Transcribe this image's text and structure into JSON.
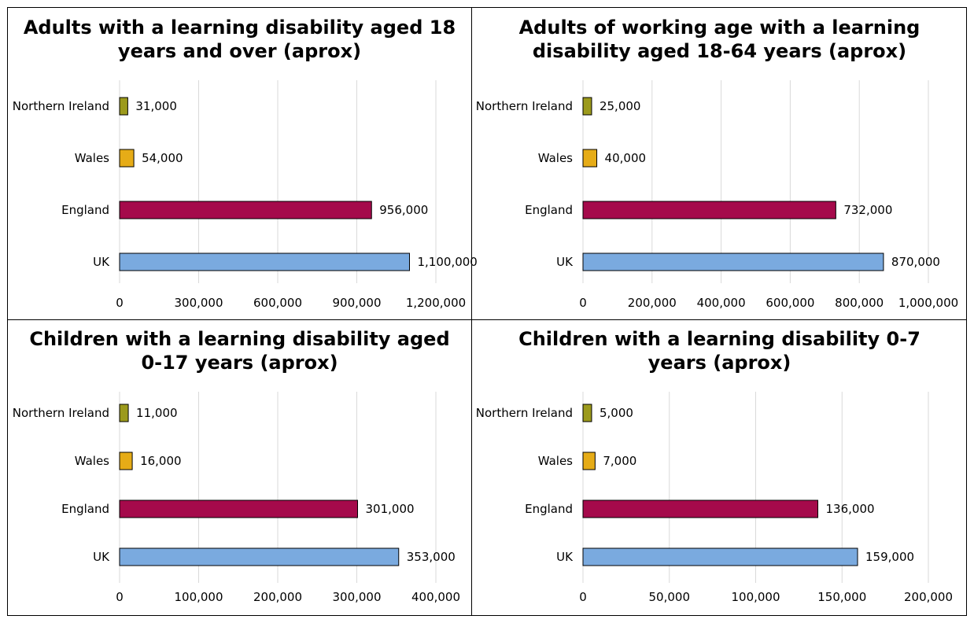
{
  "chart_data": [
    {
      "type": "bar",
      "orientation": "horizontal",
      "title": "Adults with a learning disability aged 18 years and over (aprox)",
      "title_lines": [
        "Adults with a learning disability aged 18",
        "years and over (aprox)"
      ],
      "categories": [
        "Northern Ireland",
        "Wales",
        "England",
        "UK"
      ],
      "values": [
        31000,
        54000,
        956000,
        1100000
      ],
      "value_labels": [
        "31,000",
        "54,000",
        "956,000",
        "1,100,000"
      ],
      "xlim": [
        0,
        1200000
      ],
      "ticks": [
        0,
        300000,
        600000,
        900000,
        1200000
      ],
      "tick_labels": [
        "0",
        "300,000",
        "600,000",
        "900,000",
        "1,200,000"
      ],
      "xlabel": "",
      "ylabel": "",
      "grid": "vertical"
    },
    {
      "type": "bar",
      "orientation": "horizontal",
      "title": "Adults of working age with a learning disability aged 18-64 years (aprox)",
      "title_lines": [
        "Adults of working age with a learning",
        "disability aged 18-64 years (aprox)"
      ],
      "categories": [
        "Northern Ireland",
        "Wales",
        "England",
        "UK"
      ],
      "values": [
        25000,
        40000,
        732000,
        870000
      ],
      "value_labels": [
        "25,000",
        "40,000",
        "732,000",
        "870,000"
      ],
      "xlim": [
        0,
        1000000
      ],
      "ticks": [
        0,
        200000,
        400000,
        600000,
        800000,
        1000000
      ],
      "tick_labels": [
        "0",
        "200,000",
        "400,000",
        "600,000",
        "800,000",
        "1,000,000"
      ],
      "xlabel": "",
      "ylabel": "",
      "grid": "vertical"
    },
    {
      "type": "bar",
      "orientation": "horizontal",
      "title": "Children with a learning disability aged 0-17 years (aprox)",
      "title_lines": [
        "Children with a learning disability aged",
        "0-17 years (aprox)"
      ],
      "categories": [
        "Northern Ireland",
        "Wales",
        "England",
        "UK"
      ],
      "values": [
        11000,
        16000,
        301000,
        353000
      ],
      "value_labels": [
        "11,000",
        "16,000",
        "301,000",
        "353,000"
      ],
      "xlim": [
        0,
        400000
      ],
      "ticks": [
        0,
        100000,
        200000,
        300000,
        400000
      ],
      "tick_labels": [
        "0",
        "100,000",
        "200,000",
        "300,000",
        "400,000"
      ],
      "xlabel": "",
      "ylabel": "",
      "grid": "vertical"
    },
    {
      "type": "bar",
      "orientation": "horizontal",
      "title": "Children with a learning disability 0-7 years (aprox)",
      "title_lines": [
        "Children with a learning disability 0-7",
        "years (aprox)"
      ],
      "categories": [
        "Northern Ireland",
        "Wales",
        "England",
        "UK"
      ],
      "values": [
        5000,
        7000,
        136000,
        159000
      ],
      "value_labels": [
        "5,000",
        "7,000",
        "136,000",
        "159,000"
      ],
      "xlim": [
        0,
        200000
      ],
      "ticks": [
        0,
        50000,
        100000,
        150000,
        200000
      ],
      "tick_labels": [
        "0",
        "50,000",
        "100,000",
        "150,000",
        "200,000"
      ],
      "xlabel": "",
      "ylabel": "",
      "grid": "vertical"
    }
  ],
  "colors": {
    "Northern Ireland": "#9c9a1c",
    "Wales": "#e6ac17",
    "England": "#a50a4b",
    "UK": "#7aaadf",
    "grid": "#d9d9d9",
    "border": "#000000"
  }
}
